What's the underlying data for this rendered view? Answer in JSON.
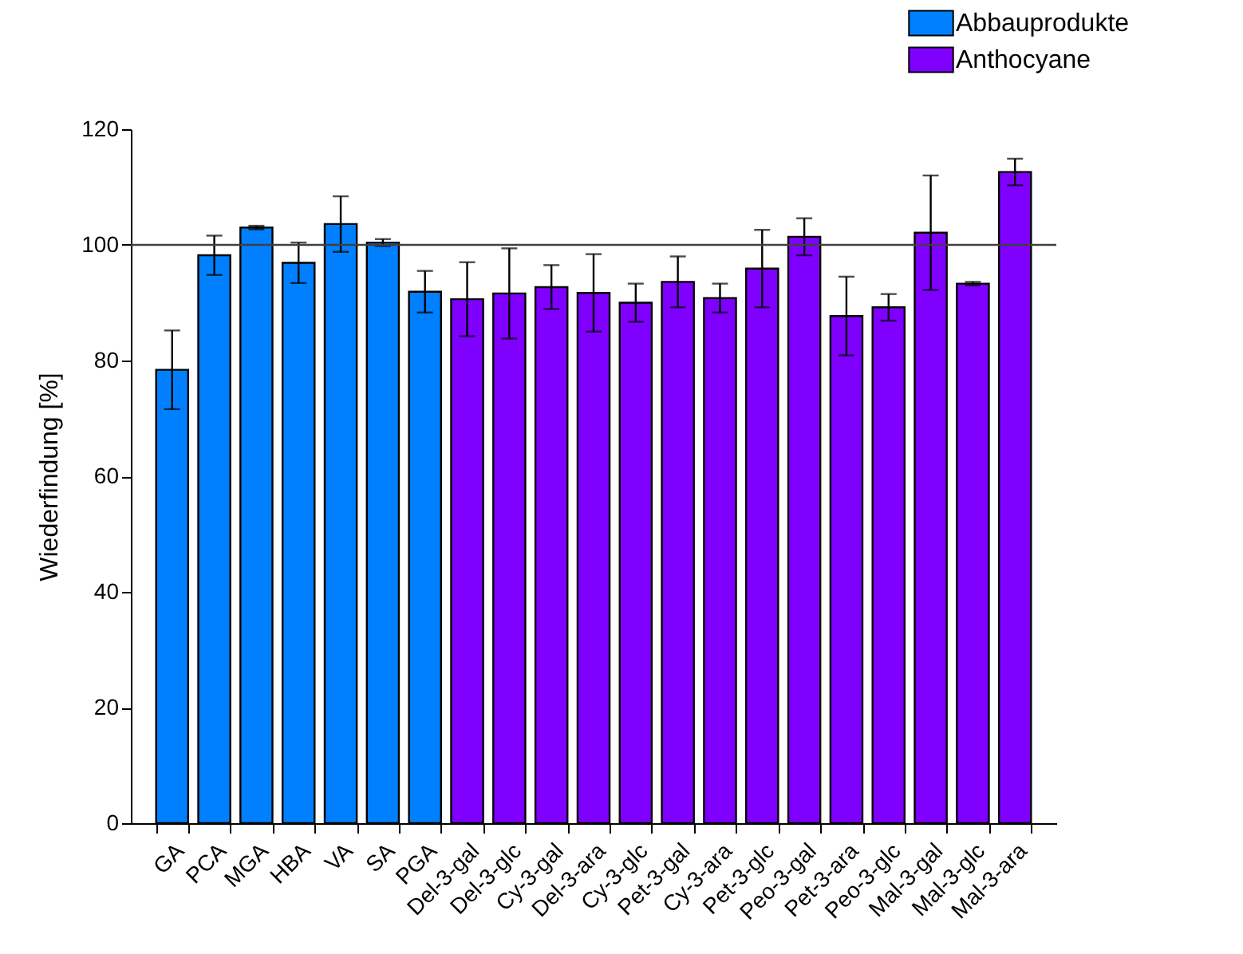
{
  "chart_data": {
    "type": "bar",
    "ylabel": "Wiederfindung [%]",
    "categories": [
      "GA",
      "PCA",
      "MGA",
      "HBA",
      "VA",
      "SA",
      "PGA",
      "Del-3-gal",
      "Del-3-glc",
      "Cy-3-gal",
      "Del-3-ara",
      "Cy-3-glc",
      "Pet-3-gal",
      "Cy-3-ara",
      "Pet-3-glc",
      "Peo-3-gal",
      "Pet-3-ara",
      "Peo-3-glc",
      "Mal-3-gal",
      "Mal-3-glc",
      "Mal-3-ara"
    ],
    "series": [
      {
        "name": "Abbauprodukte",
        "color": "#0080ff",
        "values": [
          78.4,
          98.2,
          103.0,
          96.9,
          103.6,
          100.4,
          91.9,
          null,
          null,
          null,
          null,
          null,
          null,
          null,
          null,
          null,
          null,
          null,
          null,
          null,
          null
        ],
        "errors": [
          6.8,
          3.4,
          0.3,
          3.5,
          4.8,
          0.6,
          3.6,
          null,
          null,
          null,
          null,
          null,
          null,
          null,
          null,
          null,
          null,
          null,
          null,
          null,
          null
        ]
      },
      {
        "name": "Anthocyane",
        "color": "#8000ff",
        "values": [
          null,
          null,
          null,
          null,
          null,
          null,
          null,
          90.6,
          91.6,
          92.7,
          91.7,
          90.0,
          93.6,
          90.8,
          95.9,
          101.4,
          87.7,
          89.2,
          102.1,
          93.3,
          112.6
        ],
        "errors": [
          null,
          null,
          null,
          null,
          null,
          null,
          null,
          6.4,
          7.8,
          3.8,
          6.7,
          3.3,
          4.4,
          2.5,
          6.7,
          3.2,
          6.8,
          2.3,
          9.9,
          0.3,
          2.3
        ]
      }
    ],
    "ylim": [
      0,
      120
    ],
    "yticks": [
      0,
      20,
      40,
      60,
      80,
      100,
      120
    ],
    "ref_lines": [
      {
        "axis": "y",
        "value": 100,
        "color": "#404040"
      }
    ],
    "grid": false,
    "legend": "top right"
  }
}
